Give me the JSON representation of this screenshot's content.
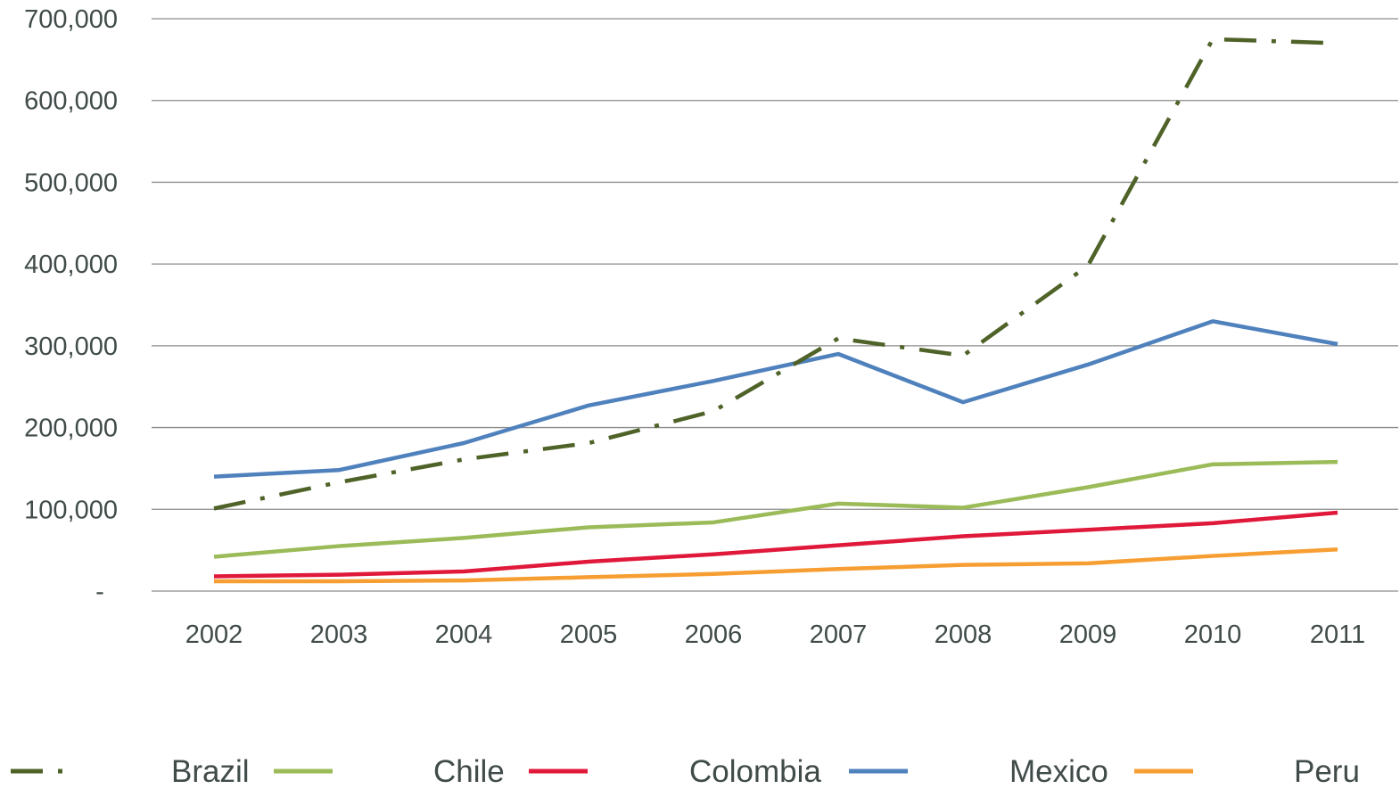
{
  "chart_data": {
    "type": "line",
    "title": "",
    "xlabel": "",
    "ylabel": "",
    "categories": [
      "2002",
      "2003",
      "2004",
      "2005",
      "2006",
      "2007",
      "2008",
      "2009",
      "2010",
      "2011"
    ],
    "ylim": [
      0,
      700000
    ],
    "yticks": [
      0,
      100000,
      200000,
      300000,
      400000,
      500000,
      600000,
      700000
    ],
    "ytick_labels": [
      "-",
      "100,000",
      "200,000",
      "300,000",
      "400,000",
      "500,000",
      "600,000",
      "700,000"
    ],
    "grid": "horizontal",
    "legend_position": "bottom",
    "series": [
      {
        "name": "Brazil",
        "color": "#4f6228",
        "style": "dash-dot",
        "values": [
          101000,
          133000,
          161000,
          181000,
          220000,
          309000,
          288000,
          398000,
          675000,
          670000
        ]
      },
      {
        "name": "Chile",
        "color": "#9bbb59",
        "style": "solid",
        "values": [
          42000,
          55000,
          65000,
          78000,
          84000,
          107000,
          102000,
          127000,
          155000,
          158000
        ]
      },
      {
        "name": "Colombia",
        "color": "#e0193b",
        "style": "solid",
        "values": [
          18000,
          20000,
          24000,
          36000,
          45000,
          56000,
          67000,
          75000,
          83000,
          96000
        ]
      },
      {
        "name": "Mexico",
        "color": "#4f81bd",
        "style": "solid",
        "values": [
          140000,
          148000,
          181000,
          227000,
          257000,
          290000,
          231000,
          277000,
          330000,
          302000
        ]
      },
      {
        "name": "Peru",
        "color": "#f79e33",
        "style": "solid",
        "values": [
          12000,
          12000,
          13000,
          17000,
          21000,
          27000,
          32000,
          34000,
          43000,
          51000
        ]
      }
    ]
  }
}
